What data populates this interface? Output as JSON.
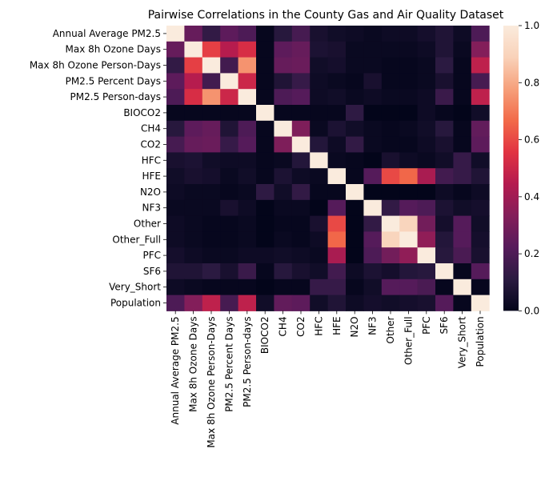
{
  "chart_data": {
    "type": "heatmap",
    "title": "Pairwise Correlations in the County Gas and Air Quality Dataset",
    "labels": [
      "Annual Average PM2.5",
      "Max 8h Ozone Days",
      "Max 8h Ozone Person-Days",
      "PM2.5 Percent Days",
      "PM2.5 Person-days",
      "BIOCO2",
      "CH4",
      "CO2",
      "HFC",
      "HFE",
      "N2O",
      "NF3",
      "Other",
      "Other_Full",
      "PFC",
      "SF6",
      "Very_Short",
      "Population"
    ],
    "values": [
      [
        1.0,
        0.26,
        0.13,
        0.24,
        0.2,
        0.01,
        0.1,
        0.18,
        0.06,
        0.04,
        0.03,
        0.02,
        0.03,
        0.03,
        0.05,
        0.08,
        0.03,
        0.2
      ],
      [
        0.26,
        1.0,
        0.58,
        0.45,
        0.53,
        0.01,
        0.24,
        0.26,
        0.07,
        0.06,
        0.02,
        0.02,
        0.02,
        0.02,
        0.03,
        0.08,
        0.02,
        0.33
      ],
      [
        0.13,
        0.58,
        1.0,
        0.17,
        0.75,
        0.01,
        0.26,
        0.27,
        0.04,
        0.05,
        0.02,
        0.02,
        0.01,
        0.01,
        0.02,
        0.11,
        0.01,
        0.47
      ],
      [
        0.24,
        0.45,
        0.17,
        1.0,
        0.5,
        0.01,
        0.08,
        0.14,
        0.03,
        0.02,
        0.01,
        0.06,
        0.01,
        0.01,
        0.02,
        0.06,
        0.01,
        0.18
      ],
      [
        0.2,
        0.53,
        0.75,
        0.5,
        1.0,
        0.01,
        0.2,
        0.22,
        0.03,
        0.04,
        0.02,
        0.03,
        0.02,
        0.02,
        0.03,
        0.15,
        0.01,
        0.47
      ],
      [
        0.01,
        0.01,
        0.01,
        0.01,
        0.01,
        1.0,
        0.01,
        0.01,
        0.01,
        0.01,
        0.12,
        0.0,
        0.0,
        0.0,
        0.03,
        0.01,
        0.0,
        0.04
      ],
      [
        0.1,
        0.24,
        0.26,
        0.08,
        0.2,
        0.01,
        1.0,
        0.32,
        0.02,
        0.07,
        0.04,
        0.02,
        0.01,
        0.02,
        0.04,
        0.1,
        0.01,
        0.25
      ],
      [
        0.18,
        0.26,
        0.27,
        0.14,
        0.22,
        0.01,
        0.32,
        1.0,
        0.09,
        0.03,
        0.13,
        0.02,
        0.01,
        0.01,
        0.03,
        0.06,
        0.01,
        0.24
      ],
      [
        0.06,
        0.07,
        0.04,
        0.03,
        0.03,
        0.01,
        0.02,
        0.09,
        1.0,
        0.02,
        0.01,
        0.0,
        0.06,
        0.03,
        0.02,
        0.04,
        0.14,
        0.04
      ],
      [
        0.04,
        0.06,
        0.05,
        0.02,
        0.04,
        0.01,
        0.07,
        0.03,
        0.02,
        1.0,
        0.01,
        0.22,
        0.6,
        0.66,
        0.42,
        0.17,
        0.14,
        0.08
      ],
      [
        0.03,
        0.02,
        0.02,
        0.01,
        0.02,
        0.12,
        0.04,
        0.13,
        0.01,
        0.01,
        1.0,
        0.0,
        0.0,
        0.0,
        0.0,
        0.03,
        0.01,
        0.03
      ],
      [
        0.02,
        0.02,
        0.02,
        0.06,
        0.03,
        0.0,
        0.02,
        0.02,
        0.0,
        0.22,
        0.0,
        1.0,
        0.13,
        0.22,
        0.2,
        0.07,
        0.04,
        0.05
      ],
      [
        0.03,
        0.02,
        0.01,
        0.01,
        0.02,
        0.0,
        0.01,
        0.01,
        0.06,
        0.6,
        0.0,
        0.13,
        1.0,
        0.9,
        0.29,
        0.05,
        0.22,
        0.04
      ],
      [
        0.03,
        0.02,
        0.01,
        0.01,
        0.02,
        0.0,
        0.02,
        0.01,
        0.03,
        0.66,
        0.0,
        0.22,
        0.9,
        1.0,
        0.36,
        0.09,
        0.22,
        0.05
      ],
      [
        0.05,
        0.03,
        0.02,
        0.02,
        0.03,
        0.03,
        0.04,
        0.03,
        0.02,
        0.42,
        0.0,
        0.2,
        0.29,
        0.36,
        1.0,
        0.1,
        0.19,
        0.06
      ],
      [
        0.08,
        0.08,
        0.11,
        0.06,
        0.15,
        0.01,
        0.1,
        0.06,
        0.04,
        0.17,
        0.03,
        0.07,
        0.05,
        0.09,
        0.1,
        1.0,
        0.01,
        0.22
      ],
      [
        0.03,
        0.02,
        0.01,
        0.01,
        0.01,
        0.0,
        0.01,
        0.01,
        0.14,
        0.14,
        0.01,
        0.04,
        0.22,
        0.22,
        0.19,
        0.01,
        1.0,
        0.01
      ],
      [
        0.2,
        0.33,
        0.47,
        0.18,
        0.47,
        0.04,
        0.25,
        0.24,
        0.04,
        0.08,
        0.03,
        0.05,
        0.04,
        0.05,
        0.06,
        0.22,
        0.01,
        1.0
      ]
    ],
    "colorbar": {
      "range": [
        0.0,
        1.0
      ],
      "ticks": [
        0.0,
        0.2,
        0.4,
        0.6,
        0.8,
        1.0
      ],
      "tick_labels": [
        "0.0",
        "0.2",
        "0.4",
        "0.6",
        "0.8",
        "1.0"
      ],
      "colormap": "rocket",
      "stops": [
        "#03051a",
        "#2b1a41",
        "#561b5b",
        "#841e5a",
        "#b41b4f",
        "#e13342",
        "#f26a49",
        "#f6a07b",
        "#f9d2b9",
        "#faebdd"
      ]
    },
    "grid": false,
    "legend": "colorbar-right"
  }
}
